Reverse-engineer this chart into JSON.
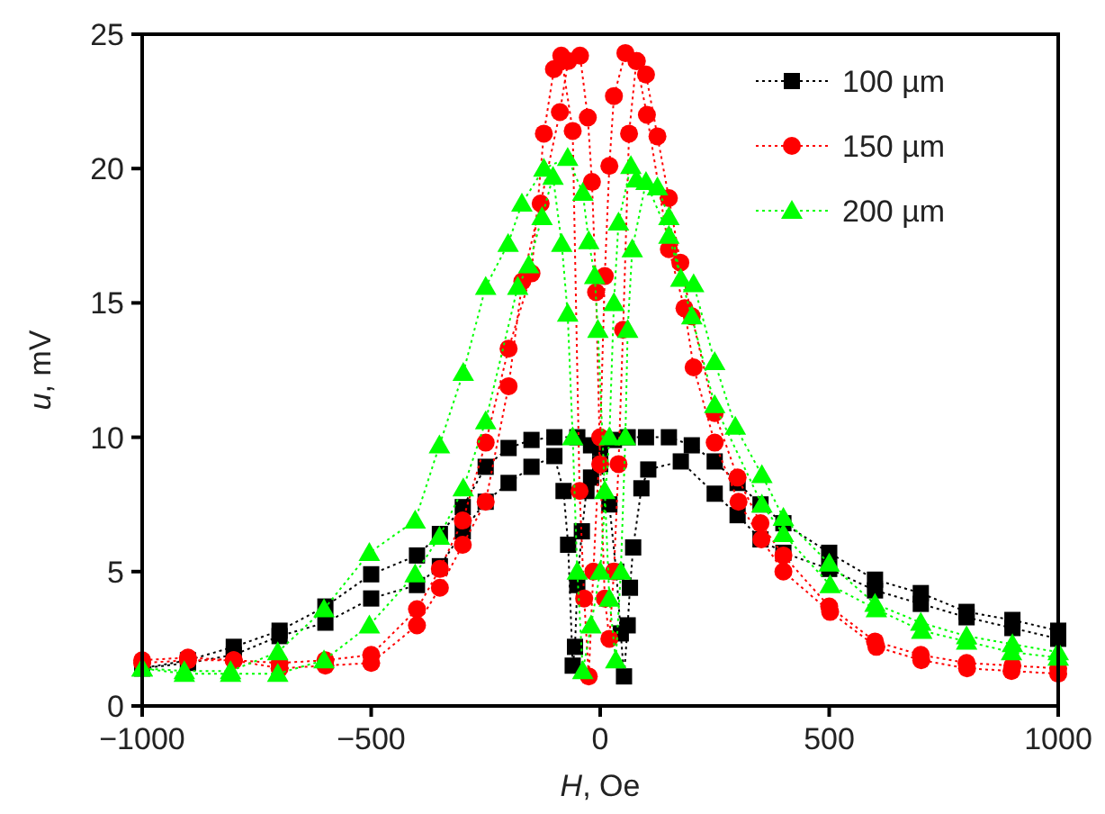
{
  "chart_data": {
    "type": "line",
    "xlabel": "H, Oe",
    "ylabel": "u, mV",
    "xlim": [
      -1000,
      1000
    ],
    "xticks": [
      {
        "value": -1000,
        "label": "−1000"
      },
      {
        "value": -500,
        "label": "−500"
      },
      0,
      500,
      1000
    ],
    "ylim": [
      0,
      25
    ],
    "yticks": [
      0,
      5,
      10,
      15,
      20,
      25
    ],
    "grid": false,
    "legend": "top right",
    "line_style": "dotted",
    "series": [
      {
        "name": "100 µm",
        "color": "#000000",
        "marker": "square",
        "x": [
          1000,
          900,
          800,
          700,
          600,
          500,
          400,
          350,
          300,
          250,
          200,
          150,
          100,
          60,
          30,
          0,
          -20,
          -30,
          -40,
          -50,
          -55,
          -60,
          -70,
          -80,
          -100,
          -150,
          -200,
          -250,
          -300,
          -350,
          -400,
          -500,
          -600,
          -700,
          -800,
          -900,
          -1000,
          -1000,
          -900,
          -800,
          -700,
          -600,
          -500,
          -400,
          -350,
          -300,
          -250,
          -200,
          -150,
          -100,
          -50,
          -20,
          0,
          20,
          35,
          45,
          52,
          60,
          65,
          72,
          90,
          105,
          176,
          250,
          300,
          350,
          400,
          500,
          600,
          700,
          800,
          900,
          1000
        ],
        "values": [
          2.8,
          3.2,
          3.5,
          4.2,
          4.7,
          5.7,
          6.8,
          7.5,
          8.3,
          9.1,
          9.7,
          10,
          10,
          10,
          9.9,
          9.6,
          8.5,
          8,
          6.5,
          4.5,
          2.2,
          1.5,
          6,
          8,
          9.3,
          8.9,
          8.3,
          7.6,
          6.5,
          5.2,
          4.5,
          4,
          3.1,
          2.6,
          1.9,
          1.6,
          1.4,
          1.4,
          1.7,
          2.2,
          2.8,
          3.7,
          4.9,
          5.6,
          6.4,
          7.4,
          8.9,
          9.6,
          9.9,
          10,
          10,
          9.7,
          9,
          7.5,
          5,
          2.7,
          1.1,
          3,
          4.4,
          5.9,
          8.1,
          8.8,
          9.1,
          7.9,
          7.1,
          6.2,
          5.7,
          5.1,
          4.3,
          3.8,
          3.3,
          2.9,
          2.5
        ]
      },
      {
        "name": "150 µm",
        "color": "#ff0000",
        "marker": "circle",
        "x": [
          1000,
          900,
          800,
          700,
          600,
          500,
          400,
          350,
          300,
          250,
          200,
          175,
          150,
          125,
          100,
          80,
          55,
          30,
          20,
          10,
          0,
          -15,
          -25,
          -35,
          -45,
          -60,
          -85,
          -101,
          -123,
          -150,
          -200,
          -250,
          -300,
          -350,
          -400,
          -500,
          -600,
          -700,
          -800,
          -900,
          -1000,
          -1000,
          -900,
          -800,
          -700,
          -600,
          -500,
          -400,
          -350,
          -300,
          -250,
          -200,
          -170,
          -130,
          -88,
          -70,
          -44,
          -27,
          -18,
          -9,
          0,
          10,
          20,
          30,
          40,
          50,
          63,
          79,
          102,
          150,
          184,
          204,
          250,
          302,
          352,
          400,
          502,
          603,
          701,
          801,
          898,
          1000
        ],
        "values": [
          1.4,
          1.5,
          1.6,
          1.9,
          2.4,
          3.7,
          5.6,
          6.8,
          8.5,
          10.9,
          14.5,
          16.5,
          18.9,
          21.2,
          23.5,
          24,
          24.3,
          22.7,
          20.1,
          16,
          10,
          5,
          1.1,
          4,
          8,
          21.4,
          24.2,
          23.7,
          21.3,
          16.1,
          13.3,
          9.8,
          6.9,
          5.1,
          3.6,
          1.9,
          1.7,
          1.6,
          1.7,
          1.8,
          1.7,
          1.6,
          1.7,
          1.7,
          1.4,
          1.5,
          1.6,
          3,
          4.4,
          6,
          7.6,
          11.9,
          15.8,
          18.7,
          22.1,
          24,
          24.2,
          21.9,
          19.5,
          15.4,
          9,
          4,
          2.5,
          5,
          9,
          14,
          21.3,
          24,
          22,
          17,
          14.8,
          12.6,
          9.8,
          7.6,
          6.2,
          5,
          3.5,
          2.2,
          1.7,
          1.4,
          1.3,
          1.2
        ]
      },
      {
        "name": "200 µm",
        "color": "#00ff00",
        "marker": "triangle",
        "x": [
          1000,
          900,
          800,
          700,
          600,
          500,
          400,
          353,
          295,
          250,
          204,
          176,
          150,
          125,
          79,
          67,
          40,
          30,
          20,
          0,
          -20,
          -38,
          -50,
          -60,
          -71,
          -84,
          -103,
          -127,
          -156,
          -180,
          -250,
          -299,
          -351,
          -404,
          -504,
          -603,
          -704,
          -807,
          -908,
          -1000,
          -1000,
          -908,
          -807,
          -704,
          -603,
          -504,
          -404,
          -351,
          -299,
          -250,
          -201,
          -171,
          -123,
          -71,
          -38,
          -25,
          -12,
          -5,
          10,
          20,
          34,
          45,
          55,
          60,
          70,
          100,
          150,
          200,
          250,
          353,
          400,
          502,
          603,
          702,
          800,
          898,
          1000
        ],
        "values": [
          2,
          2.3,
          2.6,
          3.1,
          3.8,
          5.3,
          7,
          8.6,
          10.4,
          12.8,
          15.7,
          15.9,
          18.2,
          19.3,
          19.6,
          20.1,
          18,
          15,
          10,
          5,
          3,
          1.3,
          5,
          10,
          14.6,
          17.2,
          19.7,
          18.2,
          16.4,
          15.6,
          10.6,
          8.1,
          6.3,
          4.9,
          3,
          1.7,
          1.2,
          1.2,
          1.2,
          1.4,
          1.4,
          1.3,
          1.3,
          2,
          3.6,
          5.7,
          6.9,
          9.7,
          12.4,
          15.6,
          17.2,
          18.7,
          20,
          20.4,
          19.1,
          17.3,
          16,
          14,
          8,
          4,
          1.7,
          5,
          10,
          14,
          17,
          19.5,
          17.5,
          14.5,
          11.2,
          7.5,
          6.4,
          4.5,
          3.6,
          2.8,
          2.4,
          2,
          1.8
        ]
      }
    ]
  }
}
